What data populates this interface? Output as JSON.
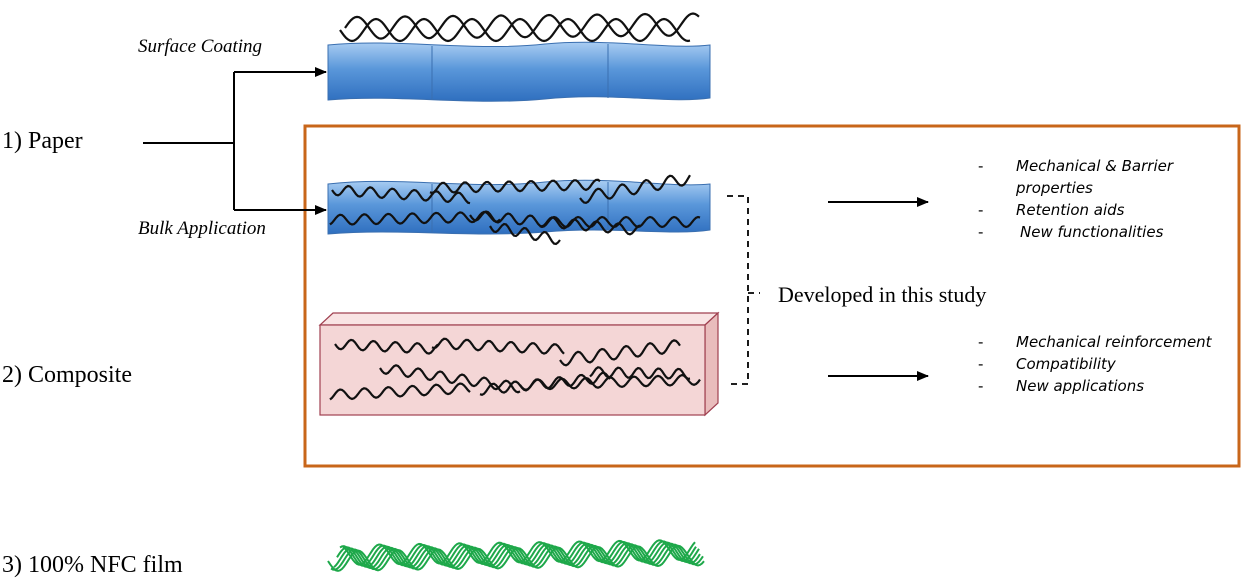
{
  "labels": {
    "paper": "1) Paper",
    "composite": "2) Composite",
    "nfc_film": "3) 100% NFC film",
    "surface_coating": "Surface Coating",
    "bulk_application": "Bulk Application",
    "developed": "Developed in this study"
  },
  "paper_outcomes": [
    "Mechanical & Barrier properties",
    "Retention aids",
    "New functionalities"
  ],
  "composite_outcomes": [
    "Mechanical reinforcement",
    "Compatibility",
    "New applications"
  ],
  "colors": {
    "study_box_border": "#c8661a",
    "paper_sheet": "#4f8fd6",
    "composite_block": "#f4d6d6",
    "composite_edge": "#a04050",
    "nfc_fibers": "#1ea84a",
    "fibers": "#111111"
  }
}
